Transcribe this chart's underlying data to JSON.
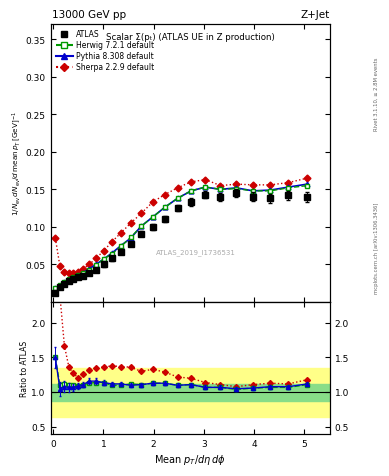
{
  "title_top": "13000 GeV pp",
  "title_right": "Z+Jet",
  "plot_title": "Scalar Σ(pₜ) (ATLAS UE in Z production)",
  "watermark": "ATLAS_2019_I1736531",
  "right_label": "mcplots.cern.ch [arXiv:1306.3436]",
  "right_label2": "Rivet 3.1.10, ≥ 2.8M events",
  "ylim_main": [
    0.0,
    0.37
  ],
  "ylim_ratio": [
    0.4,
    2.3
  ],
  "xlim": [
    -0.05,
    5.5
  ],
  "atlas_x": [
    0.045,
    0.135,
    0.225,
    0.315,
    0.405,
    0.495,
    0.6,
    0.72,
    0.855,
    1.005,
    1.17,
    1.35,
    1.545,
    1.755,
    1.98,
    2.22,
    2.475,
    2.745,
    3.03,
    3.33,
    3.645,
    3.975,
    4.32,
    4.68,
    5.055
  ],
  "atlas_y": [
    0.012,
    0.02,
    0.024,
    0.028,
    0.03,
    0.033,
    0.035,
    0.038,
    0.043,
    0.05,
    0.058,
    0.067,
    0.077,
    0.091,
    0.1,
    0.111,
    0.125,
    0.133,
    0.143,
    0.14,
    0.145,
    0.14,
    0.138,
    0.142,
    0.14
  ],
  "atlas_yerr": [
    0.002,
    0.002,
    0.002,
    0.002,
    0.002,
    0.002,
    0.002,
    0.002,
    0.002,
    0.003,
    0.003,
    0.003,
    0.003,
    0.003,
    0.004,
    0.004,
    0.004,
    0.005,
    0.005,
    0.005,
    0.005,
    0.006,
    0.006,
    0.006,
    0.007
  ],
  "herwig_x": [
    0.045,
    0.135,
    0.225,
    0.315,
    0.405,
    0.495,
    0.6,
    0.72,
    0.855,
    1.005,
    1.17,
    1.35,
    1.545,
    1.755,
    1.98,
    2.22,
    2.475,
    2.745,
    3.03,
    3.33,
    3.645,
    3.975,
    4.32,
    4.68,
    5.055
  ],
  "herwig_y": [
    0.018,
    0.022,
    0.027,
    0.031,
    0.033,
    0.036,
    0.039,
    0.043,
    0.049,
    0.057,
    0.064,
    0.074,
    0.086,
    0.101,
    0.113,
    0.126,
    0.138,
    0.148,
    0.153,
    0.15,
    0.151,
    0.148,
    0.148,
    0.152,
    0.155
  ],
  "pythia_x": [
    0.045,
    0.135,
    0.225,
    0.315,
    0.405,
    0.495,
    0.6,
    0.72,
    0.855,
    1.005,
    1.17,
    1.35,
    1.545,
    1.755,
    1.98,
    2.22,
    2.475,
    2.745,
    3.03,
    3.33,
    3.645,
    3.975,
    4.32,
    4.68,
    5.055
  ],
  "pythia_y": [
    0.018,
    0.021,
    0.026,
    0.03,
    0.032,
    0.036,
    0.039,
    0.044,
    0.05,
    0.057,
    0.065,
    0.075,
    0.085,
    0.101,
    0.113,
    0.126,
    0.138,
    0.148,
    0.153,
    0.15,
    0.152,
    0.148,
    0.149,
    0.153,
    0.157
  ],
  "sherpa_x": [
    0.045,
    0.135,
    0.225,
    0.315,
    0.405,
    0.495,
    0.6,
    0.72,
    0.855,
    1.005,
    1.17,
    1.35,
    1.545,
    1.755,
    1.98,
    2.22,
    2.475,
    2.745,
    3.03,
    3.33,
    3.645,
    3.975,
    4.32,
    4.68,
    5.055
  ],
  "sherpa_y": [
    0.085,
    0.048,
    0.04,
    0.038,
    0.038,
    0.04,
    0.044,
    0.05,
    0.058,
    0.068,
    0.08,
    0.092,
    0.105,
    0.118,
    0.133,
    0.143,
    0.152,
    0.16,
    0.163,
    0.155,
    0.157,
    0.156,
    0.156,
    0.159,
    0.165
  ],
  "ratio_herwig": [
    1.5,
    1.1,
    1.12,
    1.11,
    1.1,
    1.09,
    1.11,
    1.13,
    1.14,
    1.14,
    1.1,
    1.1,
    1.12,
    1.11,
    1.13,
    1.13,
    1.1,
    1.11,
    1.07,
    1.07,
    1.04,
    1.06,
    1.07,
    1.07,
    1.11
  ],
  "ratio_pythia": [
    1.5,
    1.05,
    1.08,
    1.07,
    1.07,
    1.09,
    1.11,
    1.16,
    1.16,
    1.14,
    1.12,
    1.12,
    1.1,
    1.11,
    1.13,
    1.13,
    1.1,
    1.11,
    1.07,
    1.07,
    1.05,
    1.06,
    1.08,
    1.08,
    1.12
  ],
  "ratio_sherpa": [
    7.08,
    2.4,
    1.67,
    1.36,
    1.27,
    1.21,
    1.26,
    1.32,
    1.35,
    1.36,
    1.38,
    1.37,
    1.36,
    1.3,
    1.33,
    1.29,
    1.22,
    1.2,
    1.14,
    1.11,
    1.08,
    1.11,
    1.13,
    1.12,
    1.18
  ],
  "ratio_pythia_err": [
    0.15,
    0.1,
    0.08,
    0.06,
    0.05,
    0.05,
    0.04,
    0.04,
    0.04,
    0.03,
    0.03,
    0.03,
    0.03,
    0.03,
    0.03,
    0.03,
    0.03,
    0.03,
    0.03,
    0.03,
    0.03,
    0.03,
    0.03,
    0.03,
    0.03
  ],
  "atlas_color": "#000000",
  "herwig_color": "#009900",
  "pythia_color": "#0000cc",
  "sherpa_color": "#cc0000",
  "band_yellow_lo": 0.65,
  "band_yellow_hi": 1.35,
  "band_green_lo": 0.88,
  "band_green_hi": 1.12,
  "xticks": [
    0,
    1,
    2,
    3,
    4,
    5
  ],
  "yticks_main": [
    0.05,
    0.1,
    0.15,
    0.2,
    0.25,
    0.3,
    0.35
  ],
  "yticks_ratio": [
    0.5,
    1.0,
    1.5,
    2.0
  ]
}
